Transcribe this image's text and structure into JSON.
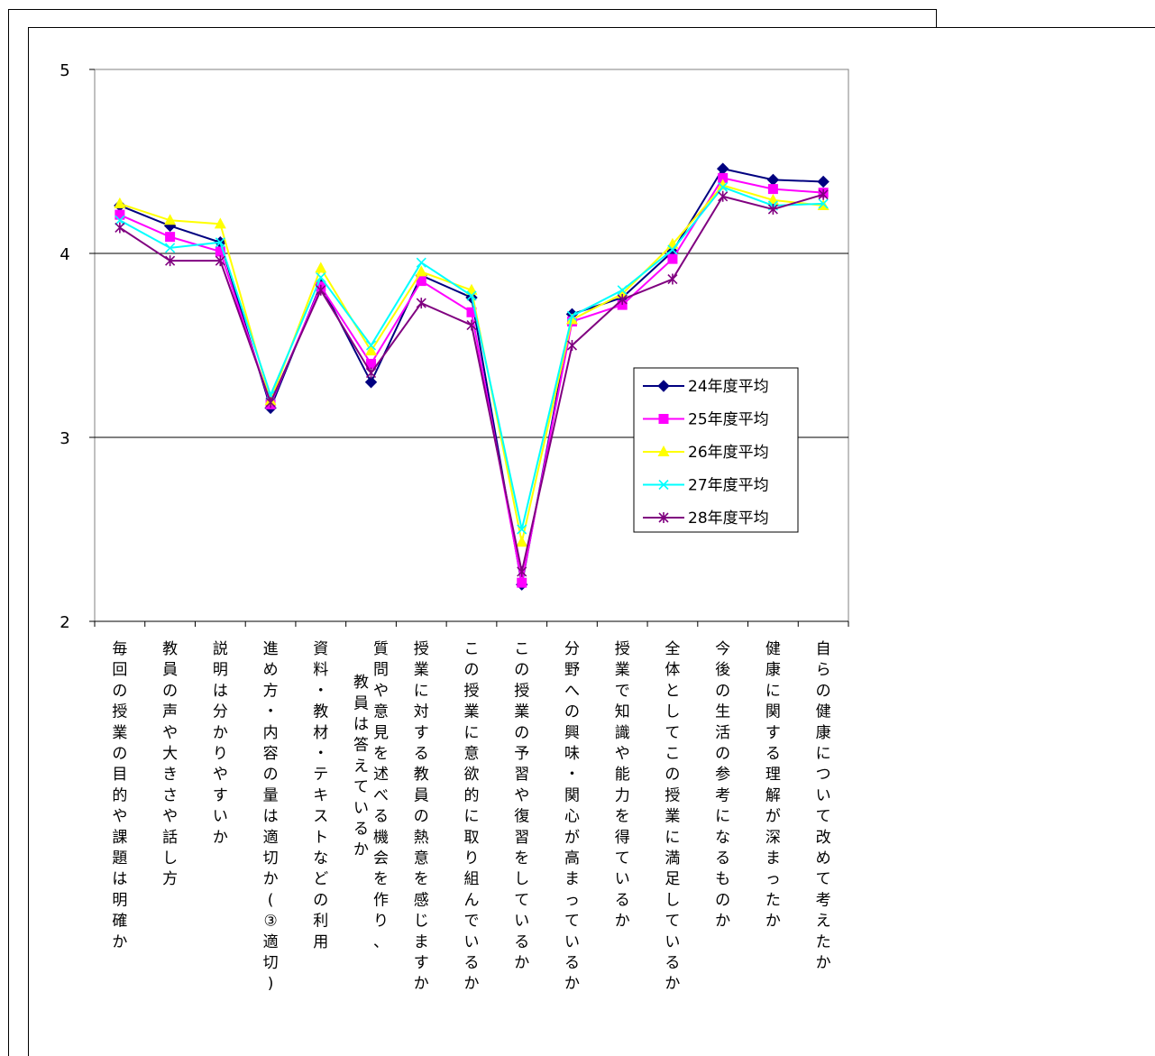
{
  "chart_data": {
    "type": "line",
    "title": "",
    "xlabel": "",
    "ylabel": "",
    "ylim": [
      2,
      5
    ],
    "yticks": [
      2,
      3,
      4,
      5
    ],
    "grid": "horizontal major gridlines",
    "legend_position": "right, inside plot area",
    "categories": [
      "毎回の授業の目的や課題は明確か",
      "教員の声や大きさや話し方",
      "説明は分かりやすいか",
      "進め方・内容の量は適切か(③適切)",
      "資料・教材・テキストなどの利用",
      "質問や意見を述べる機会を作り、教員は答えているか",
      "授業に対する教員の熱意を感じますか",
      "この授業に意欲的に取り組んでいるか",
      "この授業の予習や復習をしているか",
      "分野への興味・関心が高まっているか",
      "授業で知識や能力を得ているか",
      "全体としてこの授業に満足しているか",
      "今後の生活の参考になるものか",
      "健康に関する理解が深まったか",
      "自らの健康について改めて考えたか"
    ],
    "category_lines": [
      [
        "毎回の授業の目的や課題は明確か"
      ],
      [
        "教員の声や大きさや話し方"
      ],
      [
        "説明は分かりやすいか"
      ],
      [
        "進め方・内容の量は適切か(③適切)"
      ],
      [
        "資料・教材・テキストなどの利用"
      ],
      [
        "質問や意見を述べる機会を作り、",
        "教員は答えているか"
      ],
      [
        "授業に対する教員の熱意を感じますか"
      ],
      [
        "この授業に意欲的に取り組んでいるか"
      ],
      [
        "この授業の予習や復習をしているか"
      ],
      [
        "分野への興味・関心が高まっているか"
      ],
      [
        "授業で知識や能力を得ているか"
      ],
      [
        "全体としてこの授業に満足しているか"
      ],
      [
        "今後の生活の参考になるものか"
      ],
      [
        "健康に関する理解が深まったか"
      ],
      [
        "自らの健康について改めて考えたか"
      ]
    ],
    "series": [
      {
        "name": "24年度平均",
        "color": "#000080",
        "marker": "diamond",
        "values": [
          4.26,
          4.15,
          4.06,
          3.16,
          3.83,
          3.3,
          3.88,
          3.76,
          2.2,
          3.67,
          3.76,
          4.01,
          4.46,
          4.4,
          4.39
        ]
      },
      {
        "name": "25年度平均",
        "color": "#FF00FF",
        "marker": "square",
        "values": [
          4.21,
          4.09,
          4.01,
          3.18,
          3.82,
          3.4,
          3.85,
          3.68,
          2.21,
          3.63,
          3.72,
          3.97,
          4.41,
          4.35,
          4.33
        ]
      },
      {
        "name": "26年度平均",
        "color": "#FFFF00",
        "marker": "triangle",
        "values": [
          4.27,
          4.18,
          4.16,
          3.2,
          3.92,
          3.47,
          3.9,
          3.8,
          2.43,
          3.64,
          3.78,
          4.05,
          4.37,
          4.29,
          4.26
        ]
      },
      {
        "name": "27年度平均",
        "color": "#00FFFF",
        "marker": "x",
        "values": [
          4.18,
          4.03,
          4.06,
          3.23,
          3.87,
          3.5,
          3.95,
          3.77,
          2.5,
          3.66,
          3.8,
          4.02,
          4.36,
          4.26,
          4.27
        ]
      },
      {
        "name": "28年度平均",
        "color": "#800080",
        "marker": "star",
        "values": [
          4.14,
          3.96,
          3.96,
          3.19,
          3.8,
          3.35,
          3.73,
          3.61,
          2.27,
          3.5,
          3.75,
          3.86,
          4.31,
          4.24,
          4.32
        ]
      }
    ]
  }
}
